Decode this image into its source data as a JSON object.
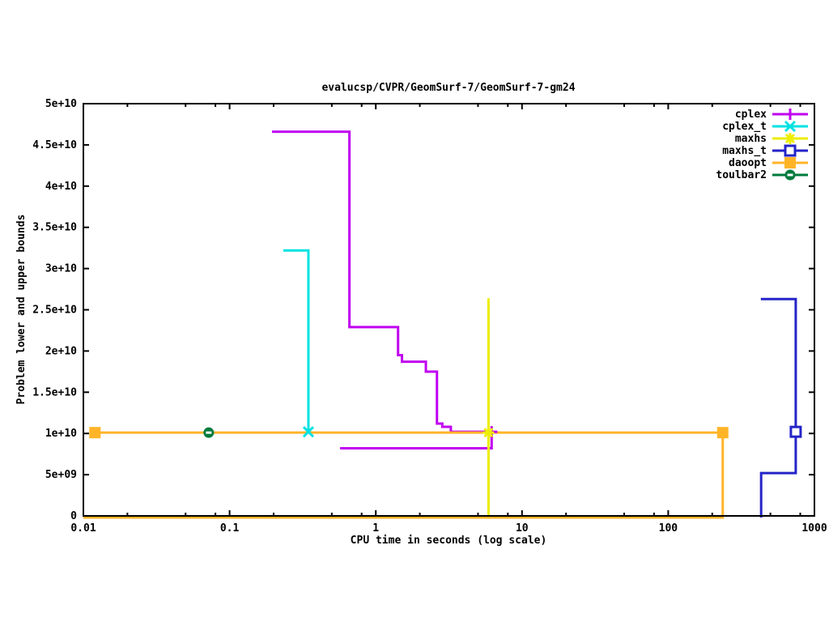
{
  "title": "evalucsp/CVPR/GeomSurf-7/GeomSurf-7-gm24",
  "axes": {
    "x": {
      "label": "CPU time in seconds (log scale)",
      "scale": "log",
      "min": 0.01,
      "max": 1000,
      "ticks": [
        "0.01",
        "0.1",
        "1",
        "10",
        "100",
        "1000"
      ],
      "minor_tick_multiples": [
        2,
        5,
        8
      ]
    },
    "y": {
      "label": "Problem lower and upper bounds",
      "min": 0,
      "max": 50000000000,
      "ticks": [
        "0",
        "5e+09",
        "1e+10",
        "1.5e+10",
        "2e+10",
        "2.5e+10",
        "3e+10",
        "3.5e+10",
        "4e+10",
        "4.5e+10",
        "5e+10"
      ]
    }
  },
  "chart_data": {
    "type": "line",
    "x_scale": "log",
    "grid": false,
    "legend_position": "top-right-inside",
    "series": [
      {
        "name": "cplex",
        "color": "#c000f0",
        "marker": "plus",
        "lines": [
          [
            [
              0.195,
              46600000000
            ],
            [
              0.66,
              46600000000
            ],
            [
              0.66,
              22900000000
            ],
            [
              1.42,
              22900000000
            ],
            [
              1.42,
              19500000000
            ],
            [
              1.51,
              19500000000
            ],
            [
              1.51,
              18700000000
            ],
            [
              2.2,
              18700000000
            ],
            [
              2.2,
              17500000000
            ],
            [
              2.62,
              17500000000
            ],
            [
              2.62,
              11200000000
            ],
            [
              2.85,
              11200000000
            ],
            [
              2.85,
              10800000000
            ],
            [
              3.26,
              10800000000
            ],
            [
              3.26,
              10200000000
            ],
            [
              6.2,
              10200000000
            ]
          ],
          [
            [
              0.57,
              8200000000
            ],
            [
              6.2,
              8200000000
            ],
            [
              6.2,
              10200000000
            ]
          ]
        ],
        "points": [
          [
            6.2,
            10200000000
          ]
        ]
      },
      {
        "name": "cplex_t",
        "color": "#00e2e2",
        "marker": "cross",
        "lines": [
          [
            [
              0.233,
              32200000000
            ],
            [
              0.346,
              32200000000
            ],
            [
              0.346,
              10200000000
            ]
          ]
        ],
        "points": [
          [
            0.346,
            10200000000
          ]
        ]
      },
      {
        "name": "maxhs",
        "color": "#eded00",
        "marker": "star",
        "lines": [
          [
            [
              0.01,
              0
            ],
            [
              5.9,
              0
            ],
            [
              5.9,
              26400000000
            ]
          ]
        ],
        "points": [
          [
            5.9,
            10100000000
          ]
        ]
      },
      {
        "name": "maxhs_t",
        "color": "#2424c8",
        "marker": "square-open",
        "lines": [
          [
            [
              430,
              26300000000
            ],
            [
              745,
              26300000000
            ],
            [
              745,
              5200000000
            ],
            [
              432,
              5200000000
            ],
            [
              432,
              0
            ]
          ]
        ],
        "points": [
          [
            745,
            10200000000
          ]
        ]
      },
      {
        "name": "daoopt",
        "color": "#ffb428",
        "marker": "square-filled",
        "lines": [
          [
            [
              0.012,
              10100000000
            ],
            [
              236,
              10100000000
            ],
            [
              236,
              0
            ],
            [
              0.01,
              0
            ]
          ]
        ],
        "points": [
          [
            0.012,
            10100000000
          ],
          [
            236,
            10100000000
          ]
        ]
      },
      {
        "name": "toulbar2",
        "color": "#007a3d",
        "marker": "circle-dash",
        "lines": [],
        "points": [
          [
            0.072,
            10100000000
          ]
        ]
      }
    ]
  }
}
